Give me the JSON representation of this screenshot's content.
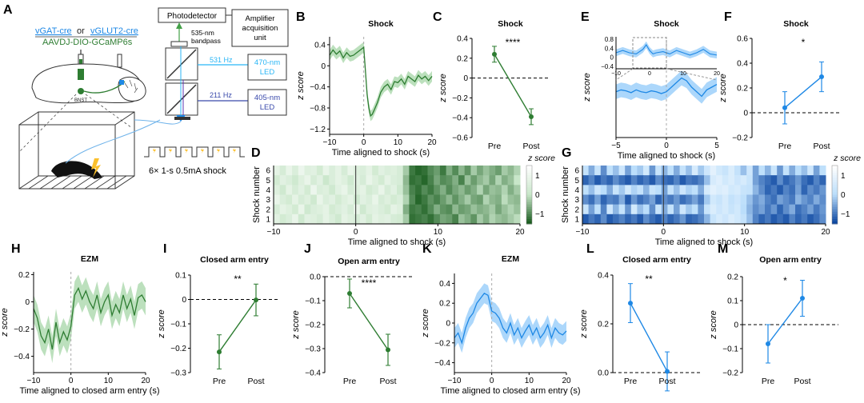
{
  "colors": {
    "green": "#2e7d32",
    "green_band": "#a5d6a7",
    "blue": "#1e88e5",
    "blue_band": "#90caf9",
    "cyan_text": "#29b6f6",
    "purple_text": "#3949ab",
    "yellow": "#fbc02d"
  },
  "schematic": {
    "panel_letter": "A",
    "cre_lines": {
      "vgat": "vGAT-cre",
      "or": "or",
      "vglut2": "vGLUT2-cre"
    },
    "virus": "AAVDJ-DIO-GCaMP6s",
    "region": "BNST",
    "photodetector": "Photodetector",
    "amplifier": [
      "Amplifier",
      "acquisition",
      "unit"
    ],
    "bandpass": [
      "535-nm",
      "bandpass"
    ],
    "freq_top": "531 Hz",
    "freq_bottom": "211 Hz",
    "led_top": [
      "470-nm",
      "LED"
    ],
    "led_bottom": [
      "405-nm",
      "LED"
    ],
    "shock_label": "6× 1-s 0.5mA shock"
  },
  "chart_data": [
    {
      "id": "B",
      "type": "line",
      "title": "Shock",
      "xlabel": "Time aligned to shock (s)",
      "ylabel": "z score",
      "xlim": [
        -10,
        20
      ],
      "ylim": [
        -1.3,
        0.55
      ],
      "xticks": [
        -10,
        0,
        10,
        20
      ],
      "yticks": [
        0.4,
        0,
        -0.4,
        -0.8,
        -1.2
      ],
      "ytick_labels": [
        "0.4",
        "0",
        "−0.4",
        "−0.8",
        "−1.2"
      ],
      "vline": 0,
      "color": "green",
      "x": [
        -10,
        -9,
        -8,
        -7,
        -6,
        -5,
        -4,
        -3,
        -2,
        -1,
        0,
        0.5,
        1,
        1.5,
        2,
        2.5,
        3,
        4,
        5,
        6,
        7,
        8,
        9,
        10,
        11,
        12,
        13,
        14,
        15,
        16,
        17,
        18,
        19,
        20
      ],
      "y": [
        0.2,
        0.3,
        0.22,
        0.28,
        0.15,
        0.25,
        0.18,
        0.2,
        0.25,
        0.3,
        0.35,
        -0.1,
        -0.55,
        -0.8,
        -0.95,
        -0.92,
        -0.85,
        -0.7,
        -0.5,
        -0.4,
        -0.35,
        -0.45,
        -0.3,
        -0.32,
        -0.25,
        -0.35,
        -0.2,
        -0.25,
        -0.3,
        -0.18,
        -0.25,
        -0.2,
        -0.28,
        -0.2
      ],
      "err": 0.1
    },
    {
      "id": "C",
      "type": "paired",
      "title": "Shock",
      "ylabel": "z score",
      "categories": [
        "Pre",
        "Post"
      ],
      "values": [
        0.24,
        -0.39
      ],
      "errors": [
        0.08,
        0.08
      ],
      "ylim": [
        -0.6,
        0.4
      ],
      "yticks": [
        0.4,
        0.2,
        0,
        -0.2,
        -0.4,
        -0.6
      ],
      "ytick_labels": [
        "0.4",
        "0.2",
        "0",
        "−0.2",
        "−0.4",
        "−0.6"
      ],
      "significance": "****",
      "hline": 0,
      "color": "green"
    },
    {
      "id": "D",
      "type": "heatmap",
      "colormap": "green",
      "xlabel": "Time aligned to shock (s)",
      "ylabel": "Shock number",
      "xlim": [
        -10,
        20
      ],
      "xticks": [
        -10,
        0,
        10,
        20
      ],
      "rows": [
        "6",
        "5",
        "4",
        "3",
        "2",
        "1"
      ],
      "cbar_title": "z score",
      "cbar_ticks": [
        "1",
        "0",
        "−1"
      ],
      "clim": [
        -1.5,
        1.5
      ],
      "rows_z": [
        [
          0.8,
          0.4,
          0.9,
          0.5,
          1.0,
          0.6,
          0.7,
          0.3,
          0.9,
          0.5,
          0.8,
          0.4,
          0.9,
          0.6,
          0.5,
          0.8,
          0.3,
          0.7,
          0.5,
          0.6,
          0.4,
          -0.3,
          -1.2,
          -1.4,
          -1.3,
          -1.0,
          -0.8,
          -1.2,
          -0.6,
          -1.0,
          -0.5,
          -0.9,
          -0.3,
          -0.7,
          -0.4,
          -0.6,
          -0.8,
          -0.3,
          -0.5,
          -0.2
        ],
        [
          0.3,
          0.7,
          0.5,
          0.2,
          0.6,
          0.9,
          0.4,
          0.7,
          0.1,
          0.5,
          0.8,
          0.6,
          0.2,
          0.7,
          0.4,
          0.9,
          0.6,
          0.3,
          0.8,
          0.5,
          0.4,
          -0.5,
          -1.3,
          -1.2,
          -1.4,
          -1.1,
          -0.7,
          -1.0,
          -0.9,
          -0.6,
          -1.1,
          -0.4,
          -0.8,
          -0.5,
          -0.3,
          -0.7,
          -0.2,
          -0.6,
          -0.4,
          0.0
        ],
        [
          0.6,
          0.2,
          0.8,
          0.4,
          0.7,
          0.3,
          1.0,
          0.5,
          0.6,
          0.2,
          0.7,
          0.9,
          0.4,
          0.6,
          0.8,
          0.3,
          0.5,
          0.9,
          0.4,
          0.7,
          0.2,
          -0.4,
          -1.1,
          -1.3,
          -1.0,
          -1.2,
          -0.9,
          -0.6,
          -1.0,
          -0.7,
          -0.5,
          -0.8,
          -0.6,
          -0.2,
          -0.7,
          -0.4,
          -0.5,
          -0.2,
          -0.6,
          -0.3
        ],
        [
          0.9,
          0.5,
          0.3,
          0.8,
          0.4,
          0.6,
          0.2,
          0.9,
          0.5,
          0.7,
          0.3,
          0.6,
          0.8,
          0.2,
          0.7,
          0.5,
          0.9,
          0.4,
          0.6,
          0.3,
          0.5,
          -0.2,
          -1.0,
          -1.4,
          -1.2,
          -0.9,
          -1.1,
          -0.8,
          -0.5,
          -0.9,
          -0.6,
          -0.3,
          -0.7,
          -0.8,
          -0.2,
          -0.5,
          -0.6,
          -0.1,
          -0.4,
          -0.5
        ],
        [
          0.4,
          0.8,
          0.6,
          0.3,
          0.9,
          0.2,
          0.5,
          0.6,
          0.8,
          0.3,
          0.5,
          0.7,
          0.4,
          0.9,
          0.2,
          0.6,
          0.7,
          0.5,
          0.3,
          0.8,
          0.6,
          -0.6,
          -1.2,
          -1.1,
          -1.3,
          -1.0,
          -0.6,
          -0.9,
          -1.0,
          -0.5,
          -0.8,
          -0.7,
          -0.4,
          -0.6,
          -0.5,
          -0.3,
          -0.7,
          -0.4,
          -0.2,
          -0.4
        ],
        [
          0.7,
          0.3,
          0.5,
          0.9,
          0.2,
          0.7,
          0.6,
          0.4,
          0.8,
          0.5,
          0.2,
          0.8,
          0.6,
          0.4,
          0.7,
          0.3,
          0.8,
          0.6,
          0.7,
          0.4,
          0.3,
          -0.3,
          -1.3,
          -1.2,
          -1.1,
          -1.3,
          -1.0,
          -0.7,
          -0.8,
          -1.1,
          -0.4,
          -0.6,
          -0.9,
          -0.3,
          -0.6,
          -0.2,
          -0.4,
          -0.5,
          -0.3,
          -0.1
        ]
      ]
    },
    {
      "id": "E",
      "type": "line",
      "title": "Shock",
      "xlabel": "Time aligned to shock (s)",
      "ylabel": "z score",
      "xlim": [
        -5,
        5
      ],
      "ylim": [
        -0.5,
        0.6
      ],
      "xticks": [
        -5,
        0,
        5
      ],
      "vline": 0,
      "color": "blue",
      "x": [
        -5,
        -4.5,
        -4,
        -3.5,
        -3,
        -2.5,
        -2,
        -1.5,
        -1,
        -0.5,
        0,
        0.5,
        1,
        1.5,
        2,
        2.5,
        3,
        3.5,
        4,
        4.5,
        5
      ],
      "y": [
        0.0,
        0.02,
        0.01,
        -0.01,
        0.02,
        0.0,
        -0.01,
        0.01,
        0.0,
        -0.02,
        0.0,
        0.05,
        0.1,
        0.15,
        0.12,
        0.05,
        0.0,
        -0.05,
        0.02,
        0.05,
        0.08
      ],
      "err": 0.08,
      "inset": {
        "xlim": [
          -10,
          20
        ],
        "ylim": [
          -0.5,
          0.9
        ],
        "xticks": [
          -10,
          0,
          10,
          20
        ],
        "yticks": [
          0.8,
          0.4,
          0,
          -0.4
        ],
        "ytick_labels": [
          "0.8",
          "0.4",
          "0",
          "−0.4"
        ],
        "x": [
          -10,
          -8,
          -6,
          -4,
          -2,
          -1,
          0,
          1,
          2,
          4,
          6,
          8,
          10,
          12,
          14,
          16,
          18,
          20
        ],
        "y": [
          0.2,
          0.3,
          0.2,
          0.15,
          0.35,
          0.55,
          0.3,
          0.15,
          0.2,
          0.25,
          0.15,
          0.3,
          0.2,
          0.1,
          0.2,
          0.35,
          0.15,
          0.1
        ],
        "err": 0.15
      }
    },
    {
      "id": "F",
      "type": "paired",
      "title": "Shock",
      "ylabel": "z score",
      "categories": [
        "Pre",
        "Post"
      ],
      "values": [
        0.04,
        0.29
      ],
      "errors": [
        0.13,
        0.12
      ],
      "ylim": [
        -0.2,
        0.6
      ],
      "yticks": [
        0.6,
        0.4,
        0.2,
        0,
        -0.2
      ],
      "ytick_labels": [
        "0.6",
        "0.4",
        "0.2",
        "0",
        "−0.2"
      ],
      "significance": "*",
      "hline": 0,
      "color": "blue"
    },
    {
      "id": "G",
      "type": "heatmap",
      "colormap": "blue",
      "xlabel": "Time aligned to shock (s)",
      "ylabel": "Shock number",
      "xlim": [
        -10,
        20
      ],
      "xticks": [
        -10,
        0,
        10,
        20
      ],
      "rows": [
        "6",
        "5",
        "4",
        "3",
        "2",
        "1"
      ],
      "cbar_title": "z score",
      "cbar_ticks": [
        "1",
        "0",
        "−1"
      ],
      "clim": [
        -1.5,
        1.5
      ],
      "rows_z": [
        [
          0.2,
          -0.5,
          0.3,
          -0.8,
          0.1,
          -0.3,
          0.4,
          -0.6,
          0.0,
          -0.2,
          0.5,
          -0.7,
          0.3,
          -0.4,
          0.1,
          -0.5,
          0.2,
          -0.3,
          0.6,
          -0.2,
          0.4,
          0.9,
          0.5,
          0.3,
          0.7,
          0.2,
          -0.3,
          0.4,
          -0.6,
          0.1,
          -0.4,
          0.3,
          -0.7,
          0.2,
          -0.5,
          0.0,
          -0.3,
          0.4,
          -0.6,
          0.1
        ],
        [
          -1.2,
          -0.9,
          -1.3,
          -1.0,
          -1.2,
          -0.8,
          -1.1,
          -1.3,
          -0.9,
          -1.2,
          -1.0,
          -1.3,
          -0.8,
          -1.1,
          -1.2,
          -0.9,
          -1.3,
          -1.0,
          -1.1,
          -0.9,
          -0.3,
          0.6,
          0.8,
          0.5,
          0.7,
          0.4,
          0.6,
          0.3,
          -0.6,
          -0.9,
          -1.1,
          -1.3,
          -0.8,
          -1.2,
          -1.0,
          -0.7,
          -1.1,
          -1.3,
          -0.9,
          -1.2
        ],
        [
          0.1,
          -0.3,
          0.4,
          0.0,
          -0.5,
          0.3,
          -0.2,
          0.5,
          -0.1,
          0.2,
          -0.4,
          0.3,
          0.0,
          -0.6,
          0.2,
          -0.3,
          0.4,
          -0.1,
          0.1,
          -0.5,
          0.6,
          0.9,
          0.7,
          0.8,
          0.5,
          0.6,
          0.3,
          0.2,
          -0.4,
          -0.8,
          -1.2,
          -1.0,
          -1.3,
          -0.9,
          -1.1,
          -0.6,
          -1.2,
          -0.8,
          -1.0,
          -0.7
        ],
        [
          -0.8,
          -1.1,
          -0.6,
          -1.2,
          -0.9,
          -1.0,
          -0.5,
          -1.3,
          -0.7,
          -1.1,
          -0.9,
          -0.6,
          -1.2,
          -0.8,
          -1.0,
          -0.7,
          -1.1,
          -0.9,
          -0.6,
          -1.0,
          -0.2,
          0.5,
          0.3,
          0.6,
          0.2,
          0.4,
          0.1,
          -0.3,
          -0.7,
          -0.5,
          -0.9,
          -1.1,
          -0.6,
          -0.8,
          -1.0,
          -0.4,
          -0.7,
          -0.9,
          -0.5,
          -0.8
        ],
        [
          0.3,
          -0.6,
          0.1,
          -0.9,
          0.4,
          -0.4,
          0.2,
          -0.7,
          0.5,
          -0.3,
          0.0,
          -0.8,
          0.3,
          -0.5,
          0.2,
          -0.6,
          0.4,
          -0.2,
          0.1,
          -0.7,
          0.3,
          0.7,
          0.4,
          0.6,
          0.3,
          0.5,
          0.0,
          -0.4,
          -0.8,
          -0.6,
          -1.0,
          -0.7,
          -1.2,
          -0.8,
          -0.5,
          -1.1,
          -0.9,
          -0.6,
          -1.0,
          -0.7
        ],
        [
          -1.3,
          -1.0,
          -1.2,
          -0.8,
          -1.3,
          -1.1,
          -0.9,
          -1.2,
          -1.0,
          -1.3,
          -0.8,
          -1.1,
          -1.3,
          -0.9,
          -1.2,
          -1.0,
          -0.7,
          -1.2,
          -1.1,
          -0.9,
          -0.4,
          0.3,
          0.6,
          0.4,
          0.7,
          0.5,
          0.2,
          -0.3,
          -0.9,
          -1.2,
          -1.0,
          -1.3,
          -1.1,
          -1.3,
          -0.9,
          -1.2,
          -1.0,
          -1.3,
          -1.1,
          -0.8
        ]
      ]
    },
    {
      "id": "H",
      "type": "line",
      "title": "EZM",
      "xlabel": "Time aligned to closed arm entry (s)",
      "ylabel": "z score",
      "xlim": [
        -10,
        20
      ],
      "ylim": [
        -0.52,
        0.22
      ],
      "xticks": [
        -10,
        0,
        10,
        20
      ],
      "yticks": [
        0.2,
        0,
        -0.2,
        -0.4
      ],
      "ytick_labels": [
        "0.2",
        "0",
        "−0.2",
        "−0.4"
      ],
      "vline": 0,
      "color": "green",
      "x": [
        -10,
        -9,
        -8,
        -7,
        -6,
        -5,
        -4,
        -3,
        -2,
        -1,
        0,
        1,
        2,
        3,
        4,
        5,
        6,
        7,
        8,
        9,
        10,
        11,
        12,
        13,
        14,
        15,
        16,
        17,
        18,
        19,
        20
      ],
      "y": [
        -0.05,
        -0.12,
        -0.25,
        -0.3,
        -0.2,
        -0.35,
        -0.15,
        -0.3,
        -0.22,
        -0.28,
        -0.18,
        0.05,
        0.1,
        0.02,
        0.08,
        0.0,
        -0.05,
        0.05,
        -0.08,
        0.0,
        0.05,
        -0.1,
        -0.02,
        -0.08,
        0.05,
        -0.05,
        0.02,
        -0.1,
        0.03,
        0.05,
        0.0
      ],
      "err": 0.1
    },
    {
      "id": "I",
      "type": "paired",
      "title": "Closed arm entry",
      "ylabel": "z score",
      "categories": [
        "Pre",
        "Post"
      ],
      "values": [
        -0.215,
        -0.002
      ],
      "errors": [
        0.07,
        0.065
      ],
      "ylim": [
        -0.3,
        0.1
      ],
      "yticks": [
        0.1,
        0,
        -0.1,
        -0.2,
        -0.3
      ],
      "ytick_labels": [
        "0.1",
        "0",
        "−0.1",
        "−0.2",
        "−0.3"
      ],
      "significance": "**",
      "hline": 0,
      "color": "green"
    },
    {
      "id": "J",
      "type": "paired",
      "title": "Open arm entry",
      "ylabel": "z score",
      "categories": [
        "Pre",
        "Post"
      ],
      "values": [
        -0.07,
        -0.305
      ],
      "errors": [
        0.06,
        0.065
      ],
      "ylim": [
        -0.4,
        0.0
      ],
      "yticks": [
        0.0,
        -0.1,
        -0.2,
        -0.3,
        -0.4
      ],
      "ytick_labels": [
        "0.0",
        "−0.1",
        "−0.2",
        "−0.3",
        "−0.4"
      ],
      "significance": "****",
      "hline": 0,
      "color": "green"
    },
    {
      "id": "K",
      "type": "line",
      "title": "EZM",
      "xlabel": "Time aligned to closed arm entry (s)",
      "ylabel": "z score",
      "xlim": [
        -10,
        20
      ],
      "ylim": [
        -0.5,
        0.5
      ],
      "xticks": [
        -10,
        0,
        10,
        20
      ],
      "yticks": [
        0.4,
        0.2,
        0,
        -0.2,
        -0.4
      ],
      "ytick_labels": [
        "0.4",
        "0.2",
        "0",
        "−0.2",
        "−0.4"
      ],
      "vline": 0,
      "color": "blue",
      "x": [
        -10,
        -9,
        -8,
        -7,
        -6,
        -5,
        -4,
        -3,
        -2,
        -1,
        0,
        1,
        2,
        3,
        4,
        5,
        6,
        7,
        8,
        9,
        10,
        11,
        12,
        13,
        14,
        15,
        16,
        17,
        18,
        19,
        20
      ],
      "y": [
        -0.15,
        -0.1,
        -0.2,
        -0.05,
        0.05,
        0.1,
        0.2,
        0.25,
        0.3,
        0.28,
        0.12,
        0.1,
        0.05,
        -0.05,
        -0.1,
        0.0,
        -0.12,
        -0.05,
        -0.15,
        -0.08,
        -0.02,
        -0.12,
        -0.05,
        -0.15,
        -0.1,
        -0.02,
        -0.15,
        -0.05,
        -0.1,
        -0.12,
        -0.08
      ],
      "err": 0.1
    },
    {
      "id": "L",
      "type": "paired",
      "title": "Closed arm entry",
      "ylabel": "z score",
      "categories": [
        "Pre",
        "Post"
      ],
      "values": [
        0.285,
        0.005
      ],
      "errors": [
        0.08,
        0.08
      ],
      "ylim": [
        0,
        0.4
      ],
      "yticks": [
        0.4,
        0.2,
        0.0
      ],
      "ytick_labels": [
        "0.4",
        "0.2",
        "0.0"
      ],
      "significance": "**",
      "hline": 0,
      "color": "blue"
    },
    {
      "id": "M",
      "type": "paired",
      "title": "Open arm entry",
      "ylabel": "z score",
      "categories": [
        "Pre",
        "Post"
      ],
      "values": [
        -0.08,
        0.11
      ],
      "errors": [
        0.08,
        0.075
      ],
      "ylim": [
        -0.2,
        0.2
      ],
      "yticks": [
        0.2,
        0.1,
        0,
        -0.1,
        -0.2
      ],
      "ytick_labels": [
        "0.2",
        "0.1",
        "0",
        "−0.1",
        "−0.2"
      ],
      "significance": "*",
      "hline": 0,
      "color": "blue"
    }
  ]
}
